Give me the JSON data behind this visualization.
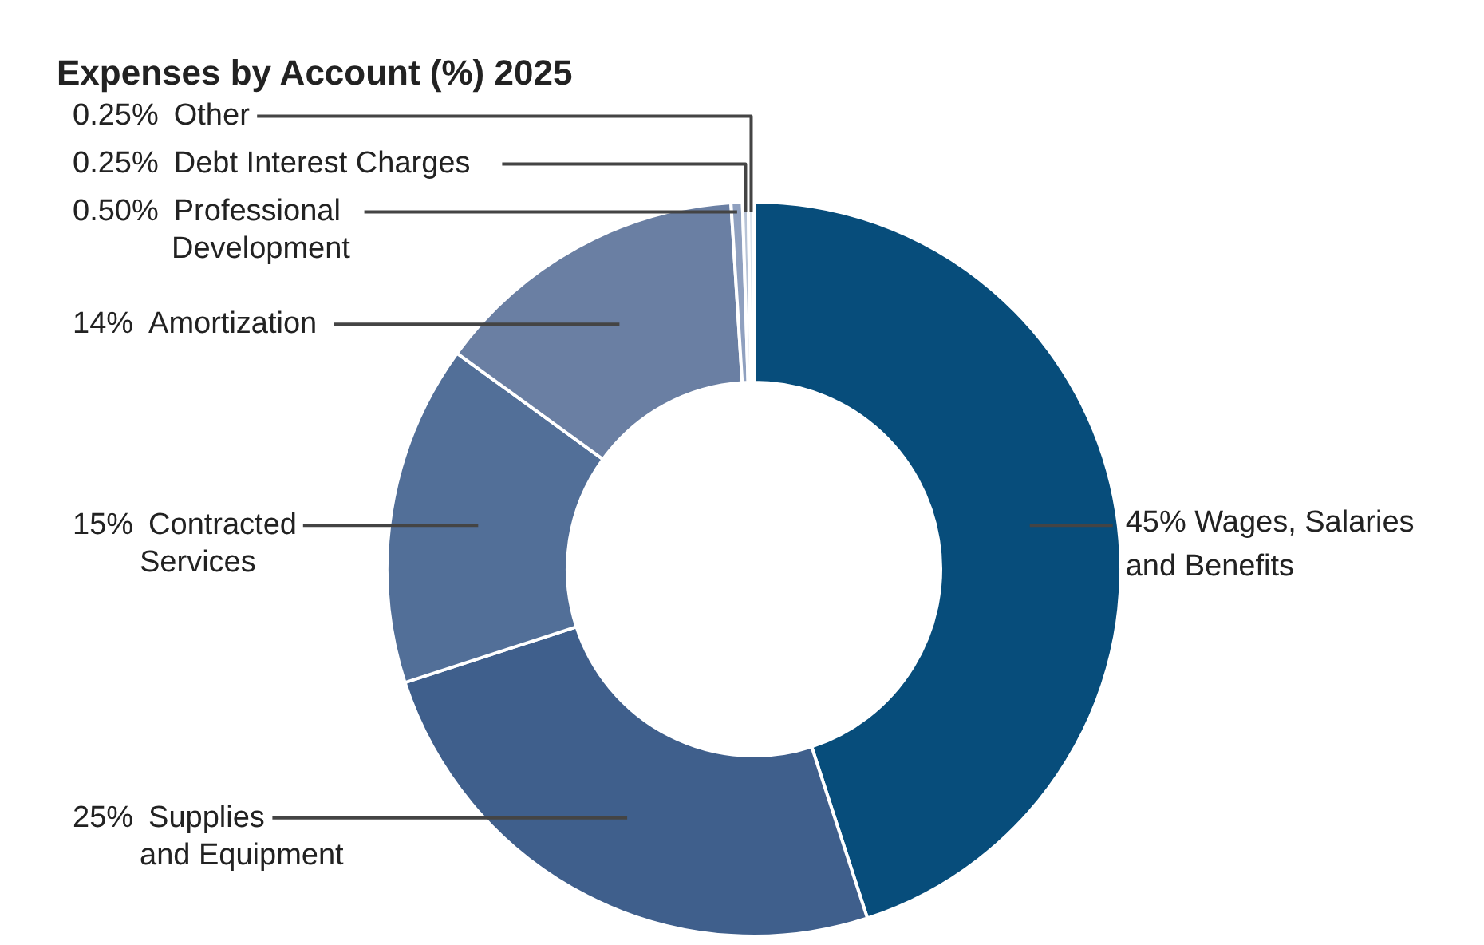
{
  "chart_data": {
    "type": "donut",
    "title": "Expenses by Account (%) 2025",
    "categories": [
      "Wages, Salaries\nand Benefits",
      "Supplies\nand Equipment",
      "Contracted\nServices",
      "Amortization",
      "Professional\nDevelopment",
      "Debt Interest Charges",
      "Other"
    ],
    "values": [
      45,
      25,
      15,
      14,
      0.5,
      0.25,
      0.25
    ],
    "value_labels": [
      "45%",
      "25%",
      "15%",
      "14%",
      "0.50%",
      "0.25%",
      "0.25%"
    ],
    "colors": [
      "#074d7b",
      "#3f5f8c",
      "#526f98",
      "#6a7fa3",
      "#8fa0bf",
      "#b7c3d6",
      "#dce3ec"
    ]
  }
}
